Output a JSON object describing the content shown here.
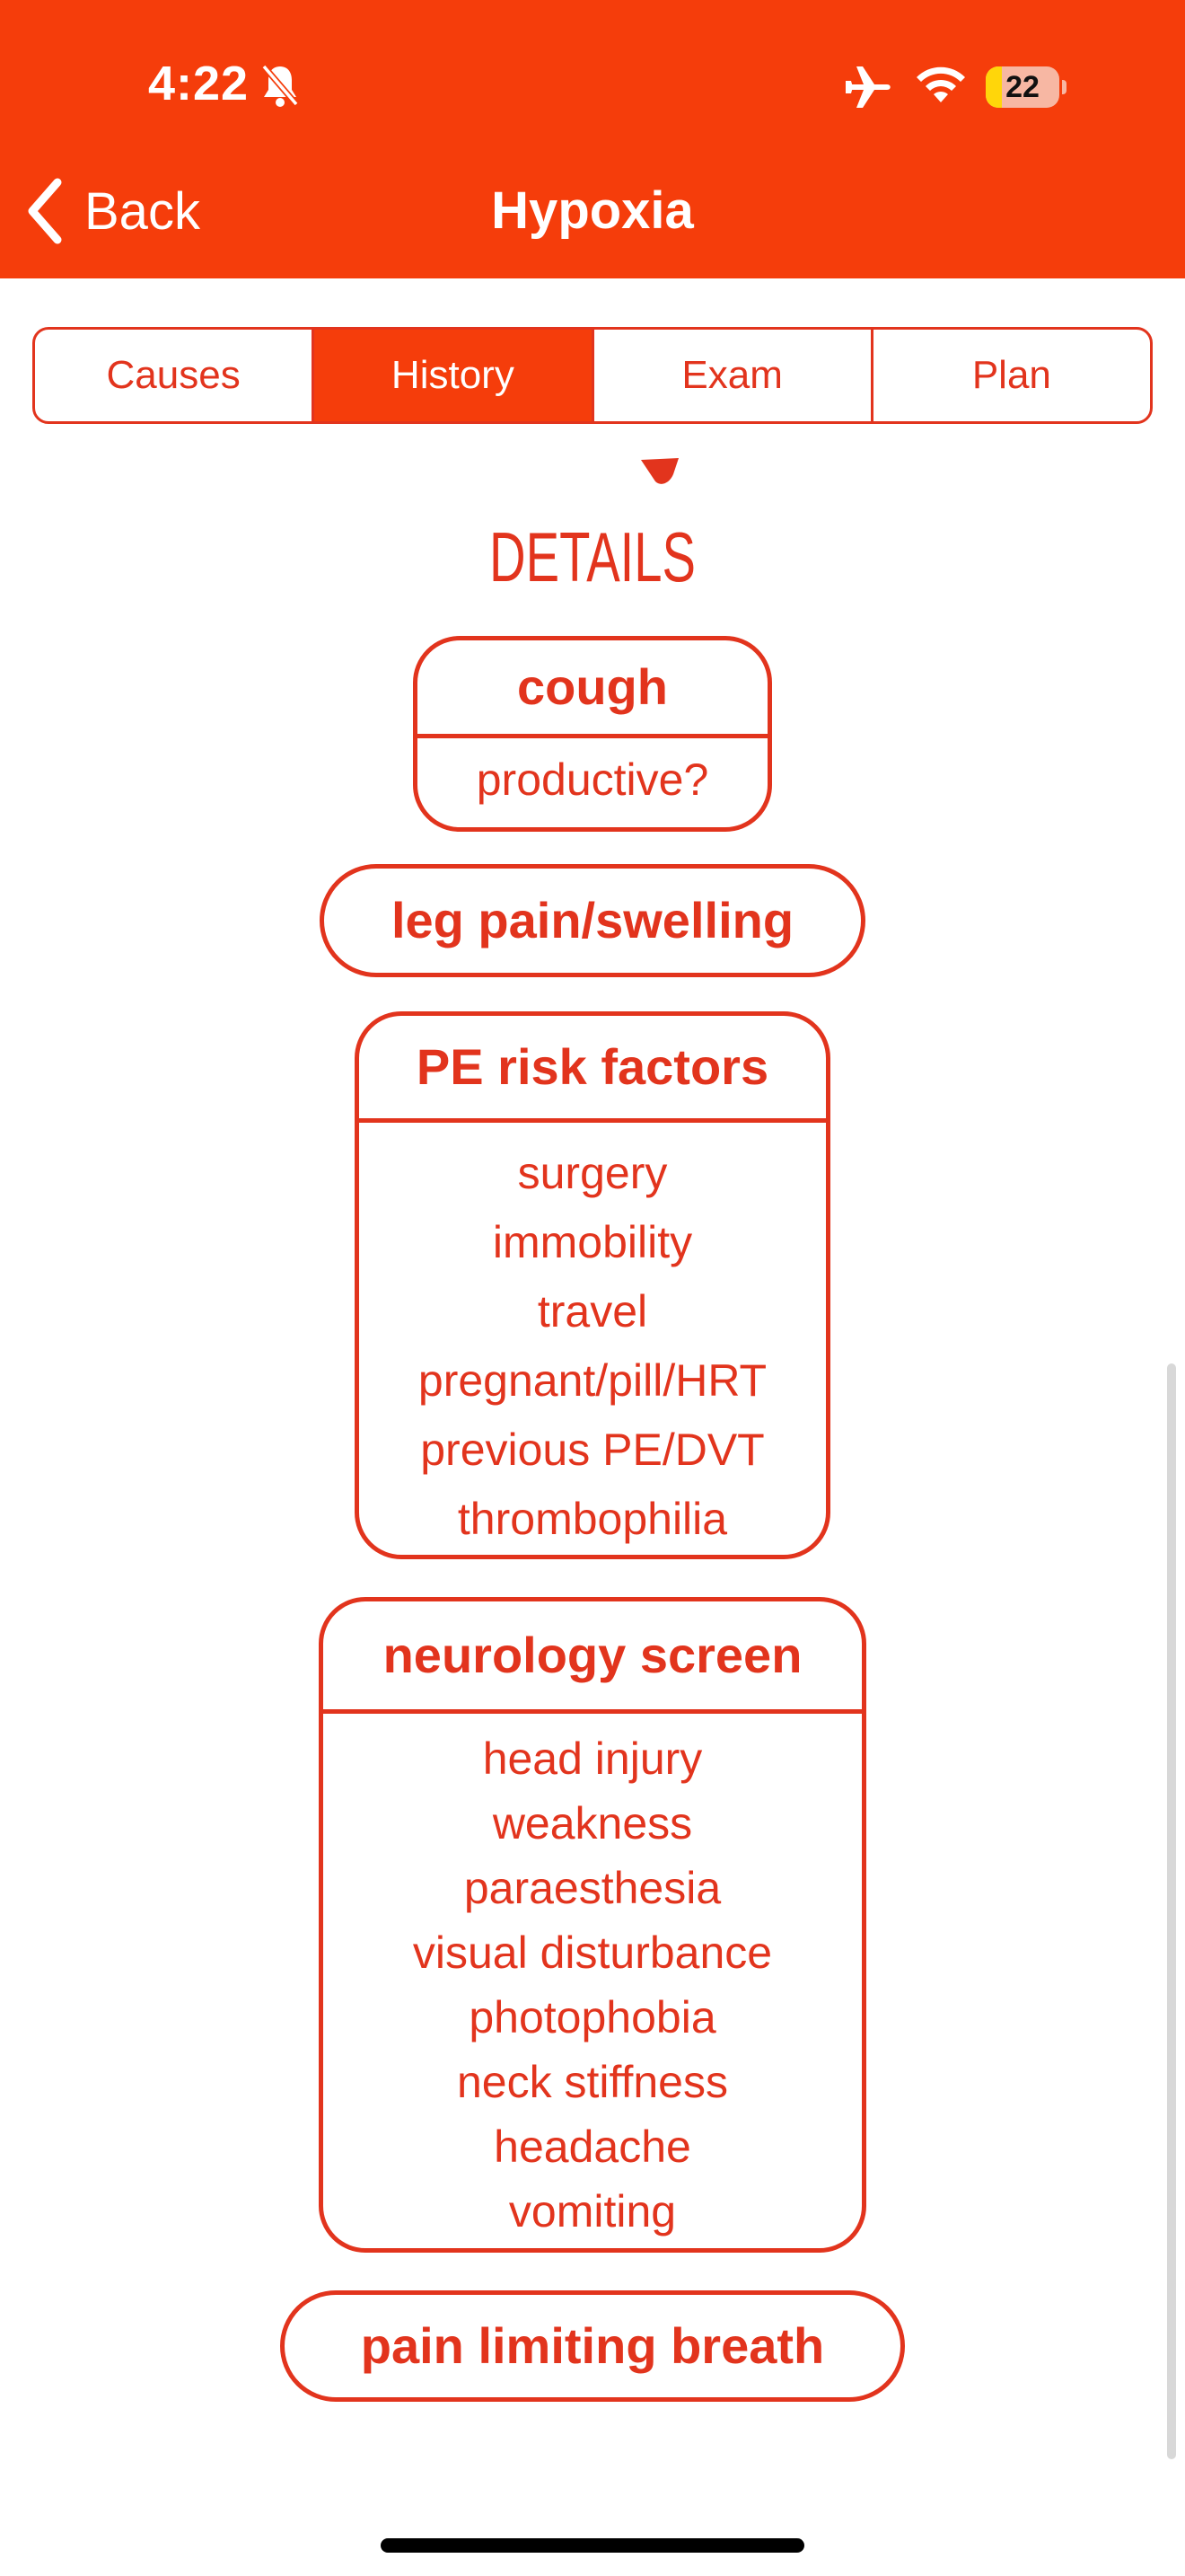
{
  "status_bar": {
    "time": "4:22",
    "battery_level": "22",
    "battery_fraction": 0.22,
    "icons": [
      "bell-slash-icon",
      "airplane-icon",
      "wifi-icon",
      "battery-icon"
    ]
  },
  "nav": {
    "back_label": "Back",
    "title": "Hypoxia"
  },
  "tabs": [
    {
      "label": "Causes",
      "active": false
    },
    {
      "label": "History",
      "active": true
    },
    {
      "label": "Exam",
      "active": false
    },
    {
      "label": "Plan",
      "active": false
    }
  ],
  "section_heading": "DETAILS",
  "cards": {
    "cough": {
      "title": "cough",
      "items": [
        "productive?"
      ]
    },
    "leg": {
      "title": "leg pain/swelling"
    },
    "pe": {
      "title": "PE risk factors",
      "items": [
        "surgery",
        "immobility",
        "travel",
        "pregnant/pill/HRT",
        "previous PE/DVT",
        "thrombophilia"
      ]
    },
    "neuro": {
      "title": "neurology screen",
      "items": [
        "head injury",
        "weakness",
        "paraesthesia",
        "visual disturbance",
        "photophobia",
        "neck stiffness",
        "headache",
        "vomiting"
      ]
    },
    "pain": {
      "title": "pain limiting breath"
    }
  },
  "colors": {
    "brand": "#f53d0b",
    "accent_text": "#e2341d",
    "background": "#ffffff"
  }
}
